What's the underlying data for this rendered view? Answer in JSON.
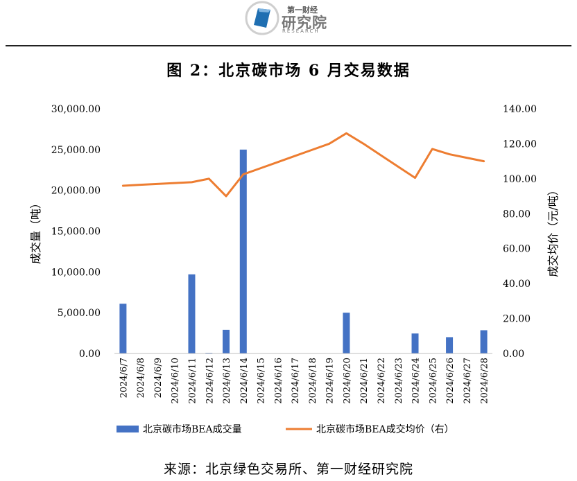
{
  "logo": {
    "line1": "第一财经",
    "line2": "研究院",
    "line3": "RESEARCH"
  },
  "title": "图 2：北京碳市场 6 月交易数据",
  "source": "来源：北京绿色交易所、第一财经研究院",
  "colors": {
    "bar": "#4472C4",
    "line": "#ED7D31"
  },
  "chart_data": {
    "type": "bar",
    "categories": [
      "2024/6/7",
      "2024/6/8",
      "2024/6/9",
      "2024/6/10",
      "2024/6/11",
      "2024/6/12",
      "2024/6/13",
      "2024/6/14",
      "2024/6/15",
      "2024/6/16",
      "2024/6/17",
      "2024/6/18",
      "2024/6/19",
      "2024/6/20",
      "2024/6/21",
      "2024/6/22",
      "2024/6/23",
      "2024/6/24",
      "2024/6/25",
      "2024/6/26",
      "2024/6/27",
      "2024/6/28"
    ],
    "series": [
      {
        "name": "北京碳市场BEA成交量",
        "type": "bar",
        "axis": "left",
        "values": [
          6100,
          0,
          0,
          0,
          9700,
          80,
          2900,
          25000,
          0,
          0,
          0,
          0,
          0,
          5000,
          0,
          0,
          0,
          2450,
          0,
          2000,
          0,
          2850
        ]
      },
      {
        "name": "北京碳市场BEA成交均价（右）",
        "type": "line",
        "axis": "right",
        "values": [
          96.0,
          96.5,
          97.0,
          97.5,
          98.0,
          100.0,
          90.0,
          102.5,
          106.0,
          109.5,
          113.0,
          116.5,
          120.0,
          126.0,
          120.0,
          113.5,
          107.0,
          100.5,
          117.0,
          114.0,
          112.0,
          110.0
        ]
      }
    ],
    "ylabel": "成交量（吨）",
    "y2label": "成交均价（元/吨）",
    "ylim": [
      0,
      30000
    ],
    "y2lim": [
      0,
      140
    ],
    "yticks": [
      "0.00",
      "5,000.00",
      "10,000.00",
      "15,000.00",
      "20,000.00",
      "25,000.00",
      "30,000.00"
    ],
    "y2ticks": [
      "0.00",
      "20.00",
      "40.00",
      "60.00",
      "80.00",
      "100.00",
      "120.00",
      "140.00"
    ],
    "grid": false,
    "legend": "bottom"
  }
}
